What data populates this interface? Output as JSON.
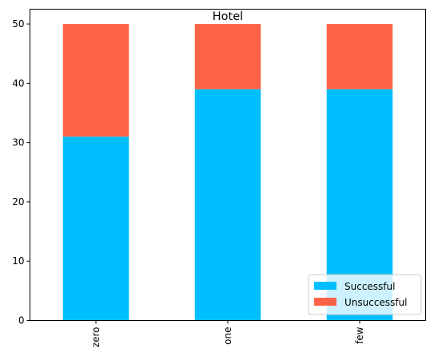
{
  "chart_data": {
    "type": "bar",
    "stacked": true,
    "title": "Hotel",
    "xlabel": "",
    "ylabel": "",
    "categories": [
      "zero",
      "one",
      "few"
    ],
    "series": [
      {
        "name": "Successful",
        "values": [
          31,
          39,
          39
        ],
        "color": "#00BFFF"
      },
      {
        "name": "Unsuccessful",
        "values": [
          19,
          11,
          11
        ],
        "color": "#FF6347"
      }
    ],
    "ylim": [
      0,
      52.5
    ],
    "yticks": [
      0,
      10,
      20,
      30,
      40,
      50
    ],
    "grid": false,
    "legend_position": "bottom-right",
    "x_tick_rotation": 90
  }
}
